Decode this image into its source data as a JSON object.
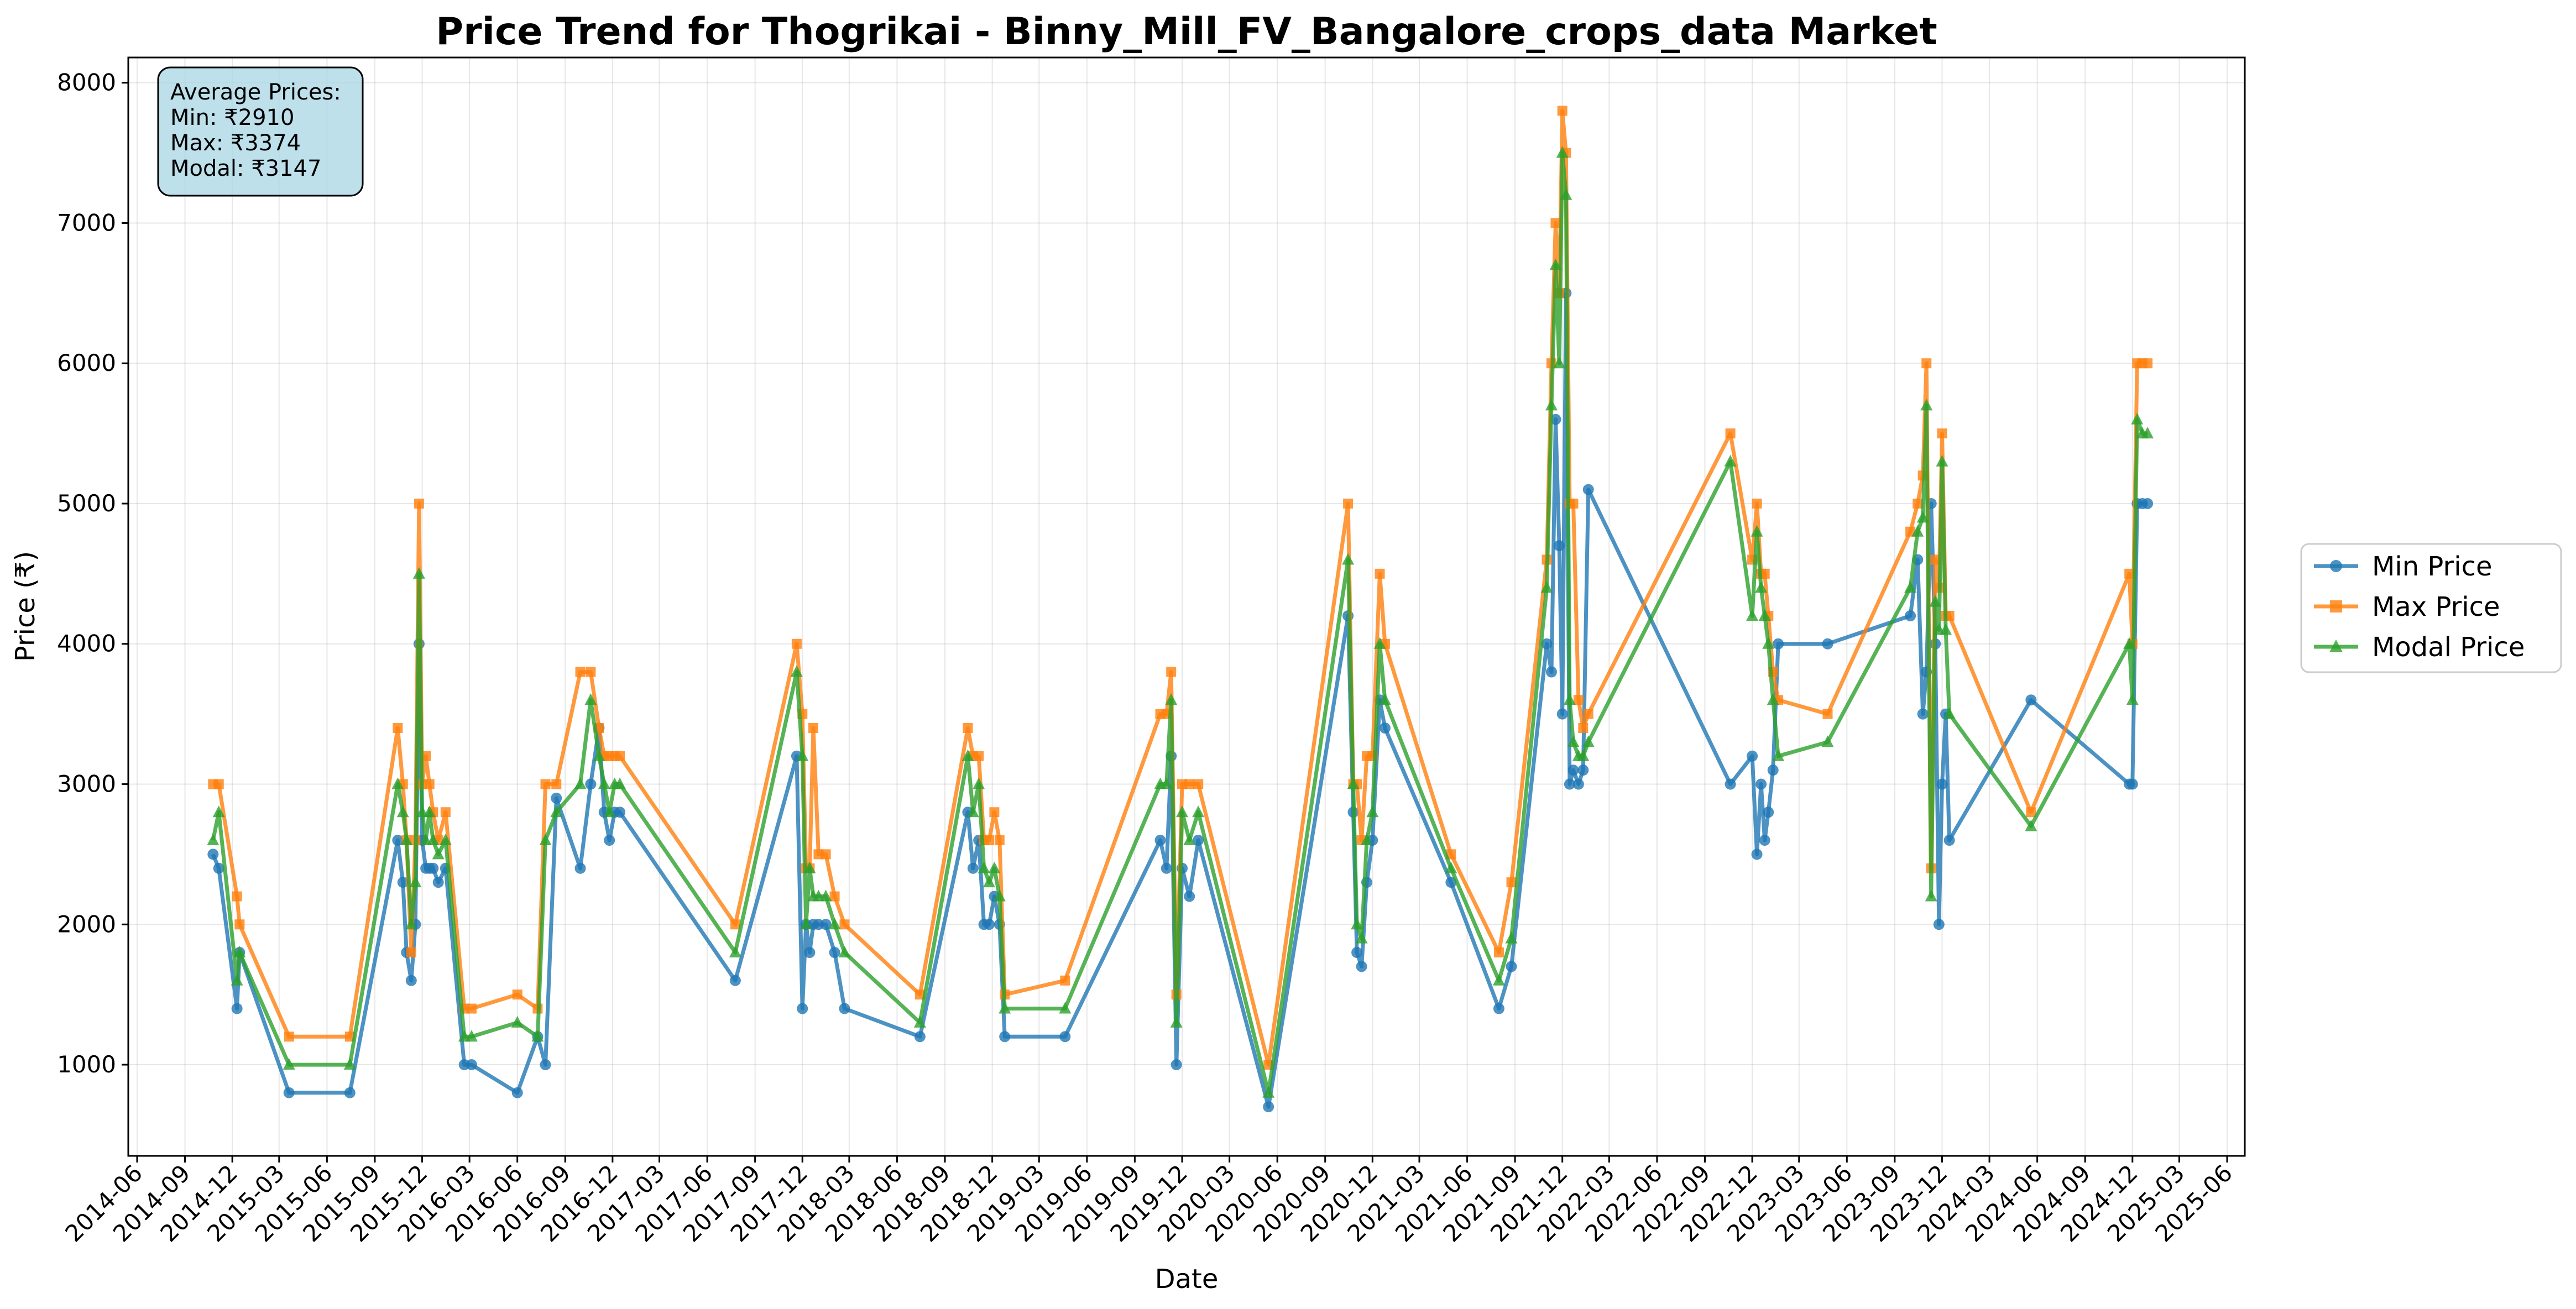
{
  "chart_data": {
    "type": "line",
    "title": "Price Trend for Thogrikai - Binny_Mill_FV_Bangalore_crops_data Market",
    "xlabel": "Date",
    "ylabel": "Price (₹)",
    "x_axis_type": "date",
    "xlim": [
      "2014-05-15",
      "2025-07-05"
    ],
    "ylim": [
      350,
      8180
    ],
    "yticks": [
      1000,
      2000,
      3000,
      4000,
      5000,
      6000,
      7000,
      8000
    ],
    "xticks": [
      "2014-06",
      "2014-09",
      "2014-12",
      "2015-03",
      "2015-06",
      "2015-09",
      "2015-12",
      "2016-03",
      "2016-06",
      "2016-09",
      "2016-12",
      "2017-03",
      "2017-06",
      "2017-09",
      "2017-12",
      "2018-03",
      "2018-06",
      "2018-09",
      "2018-12",
      "2019-03",
      "2019-06",
      "2019-09",
      "2019-12",
      "2020-03",
      "2020-06",
      "2020-09",
      "2020-12",
      "2021-03",
      "2021-06",
      "2021-09",
      "2021-12",
      "2022-03",
      "2022-06",
      "2022-09",
      "2022-12",
      "2023-03",
      "2023-06",
      "2023-09",
      "2023-12",
      "2024-03",
      "2024-06",
      "2024-09",
      "2024-12",
      "2025-03",
      "2025-06"
    ],
    "grid": true,
    "legend_position": "outside-right",
    "stats_box": {
      "title": "Average Prices:",
      "lines": [
        "Min: ₹2910",
        "Max: ₹3374",
        "Modal: ₹3147"
      ]
    },
    "x": [
      "2014-10-25",
      "2014-11-05",
      "2014-12-10",
      "2014-12-15",
      "2015-03-20",
      "2015-07-15",
      "2015-10-15",
      "2015-10-25",
      "2015-11-01",
      "2015-11-10",
      "2015-11-18",
      "2015-11-25",
      "2015-12-01",
      "2015-12-08",
      "2015-12-15",
      "2015-12-22",
      "2016-01-01",
      "2016-01-15",
      "2016-02-20",
      "2016-03-05",
      "2016-06-01",
      "2016-07-10",
      "2016-07-25",
      "2016-08-15",
      "2016-09-30",
      "2016-10-20",
      "2016-11-05",
      "2016-11-15",
      "2016-11-25",
      "2016-12-05",
      "2016-12-15",
      "2017-07-25",
      "2017-11-20",
      "2017-12-01",
      "2017-12-08",
      "2017-12-15",
      "2017-12-22",
      "2018-01-01",
      "2018-01-15",
      "2018-02-01",
      "2018-02-20",
      "2018-07-15",
      "2018-10-15",
      "2018-10-25",
      "2018-11-05",
      "2018-11-15",
      "2018-11-25",
      "2018-12-05",
      "2018-12-15",
      "2018-12-25",
      "2019-04-20",
      "2019-10-20",
      "2019-11-01",
      "2019-11-10",
      "2019-11-20",
      "2019-12-01",
      "2019-12-15",
      "2020-01-01",
      "2020-05-15",
      "2020-10-15",
      "2020-10-25",
      "2020-11-01",
      "2020-11-10",
      "2020-11-20",
      "2020-12-01",
      "2020-12-15",
      "2020-12-25",
      "2021-05-01",
      "2021-08-01",
      "2021-08-25",
      "2021-11-01",
      "2021-11-10",
      "2021-11-18",
      "2021-11-25",
      "2021-12-01",
      "2021-12-08",
      "2021-12-15",
      "2021-12-22",
      "2022-01-01",
      "2022-01-10",
      "2022-01-20",
      "2022-10-20",
      "2022-12-01",
      "2022-12-10",
      "2022-12-18",
      "2022-12-25",
      "2023-01-01",
      "2023-01-10",
      "2023-01-20",
      "2023-04-25",
      "2023-10-01",
      "2023-10-15",
      "2023-10-25",
      "2023-11-01",
      "2023-11-10",
      "2023-11-18",
      "2023-11-25",
      "2023-12-01",
      "2023-12-08",
      "2023-12-15",
      "2024-05-20",
      "2024-11-25",
      "2024-12-01",
      "2024-12-10",
      "2024-12-20",
      "2024-12-30"
    ],
    "series": [
      {
        "name": "Min Price",
        "color": "#1f77b4",
        "marker": "circle",
        "values": [
          2500,
          2400,
          1400,
          1800,
          800,
          800,
          2600,
          2300,
          1800,
          1600,
          2000,
          4000,
          2600,
          2400,
          2400,
          2400,
          2300,
          2400,
          1000,
          1000,
          800,
          1200,
          1000,
          2900,
          2400,
          3000,
          3400,
          2800,
          2600,
          2800,
          2800,
          1600,
          3200,
          1400,
          2000,
          1800,
          2000,
          2000,
          2000,
          1800,
          1400,
          1200,
          2800,
          2400,
          2600,
          2000,
          2000,
          2200,
          2000,
          1200,
          1200,
          2600,
          2400,
          3200,
          1000,
          2400,
          2200,
          2600,
          700,
          4200,
          2800,
          1800,
          1700,
          2300,
          2600,
          3600,
          3400,
          2300,
          1400,
          1700,
          4000,
          3800,
          5600,
          4700,
          3500,
          6500,
          3000,
          3100,
          3000,
          3100,
          5100,
          3000,
          3200,
          2500,
          3000,
          2600,
          2800,
          3100,
          4000,
          4000,
          4200,
          4600,
          3500,
          3800,
          5000,
          4000,
          2000,
          3000,
          3500,
          2600,
          3600,
          3000,
          3000,
          5000,
          5000,
          5000
        ]
      },
      {
        "name": "Max Price",
        "color": "#ff7f0e",
        "marker": "square",
        "values": [
          3000,
          3000,
          2200,
          2000,
          1200,
          1200,
          3400,
          3000,
          2600,
          1800,
          2600,
          5000,
          3000,
          3200,
          3000,
          2800,
          2600,
          2800,
          1400,
          1400,
          1500,
          1400,
          3000,
          3000,
          3800,
          3800,
          3400,
          3200,
          3200,
          3200,
          3200,
          2000,
          4000,
          3500,
          2400,
          2400,
          3400,
          2500,
          2500,
          2200,
          2000,
          1500,
          3400,
          3200,
          3200,
          2600,
          2600,
          2800,
          2600,
          1500,
          1600,
          3500,
          3500,
          3800,
          1500,
          3000,
          3000,
          3000,
          1000,
          5000,
          3000,
          3000,
          2600,
          3200,
          3200,
          4500,
          4000,
          2500,
          1800,
          2300,
          4600,
          6000,
          7000,
          6500,
          7800,
          7500,
          5000,
          5000,
          3600,
          3400,
          3500,
          5500,
          4600,
          5000,
          4500,
          4500,
          4200,
          3800,
          3600,
          3500,
          4800,
          5000,
          5200,
          6000,
          2400,
          4600,
          4400,
          5500,
          4200,
          4200,
          2800,
          4500,
          4000,
          6000,
          6000,
          6000
        ]
      },
      {
        "name": "Modal Price",
        "color": "#2ca02c",
        "marker": "triangle",
        "values": [
          2600,
          2800,
          1600,
          1800,
          1000,
          1000,
          3000,
          2800,
          2600,
          2000,
          2300,
          4500,
          2800,
          2600,
          2800,
          2600,
          2500,
          2600,
          1200,
          1200,
          1300,
          1200,
          2600,
          2800,
          3000,
          3600,
          3200,
          3000,
          2800,
          3000,
          3000,
          1800,
          3800,
          3200,
          2000,
          2400,
          2200,
          2200,
          2200,
          2000,
          1800,
          1300,
          3200,
          2800,
          3000,
          2400,
          2300,
          2400,
          2200,
          1400,
          1400,
          3000,
          3000,
          3600,
          1300,
          2800,
          2600,
          2800,
          800,
          4600,
          3000,
          2000,
          1900,
          2600,
          2800,
          4000,
          3600,
          2400,
          1600,
          1900,
          4400,
          5700,
          6700,
          6000,
          7500,
          7200,
          3600,
          3300,
          3200,
          3200,
          3300,
          5300,
          4200,
          4800,
          4400,
          4200,
          4000,
          3600,
          3200,
          3300,
          4400,
          4800,
          4900,
          5700,
          2200,
          4300,
          4100,
          5300,
          4100,
          3500,
          2700,
          4000,
          3600,
          5600,
          5500,
          5500
        ]
      }
    ]
  }
}
